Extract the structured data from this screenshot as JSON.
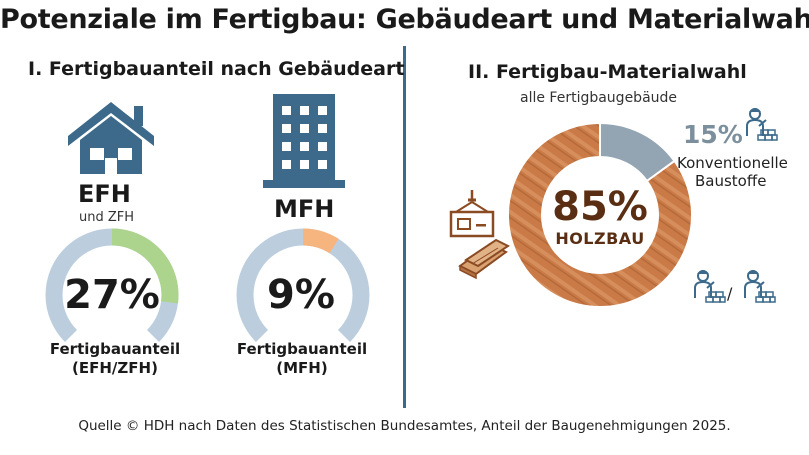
{
  "title": "Potenziale im Fertigbau: Gebäudeart und Materialwahl",
  "left_section": {
    "title": "I. Fertigbauanteil nach Gebäudeart"
  },
  "right_section": {
    "title": "II. Fertigbau-Materialwahl",
    "subtitle": "alle Fertigbaugebäude"
  },
  "source": "Quelle © HDH nach Daten des Statistischen Bundesamtes, Anteil der Baugenehmigungen 2025.",
  "colors": {
    "house_icon": "#3d6a8a",
    "gauge_track": "#bccede",
    "efh_fill": "#acd48c",
    "mfh_fill": "#f6b57f",
    "holz": "#c97a46",
    "konventionell": "#93a4b2"
  },
  "icons": [
    "house-icon",
    "apartment-building-icon",
    "crane-load-icon",
    "timber-beams-icon",
    "bricklayer-icon"
  ],
  "chart_data": [
    {
      "type": "pie",
      "subtype": "gauge",
      "name": "EFH",
      "label": "EFH",
      "sublabel": "und ZFH",
      "value": 27,
      "display": "27%",
      "caption_line1": "Fertigbauanteil",
      "caption_line2": "(EFH/ZFH)"
    },
    {
      "type": "pie",
      "subtype": "gauge",
      "name": "MFH",
      "label": "MFH",
      "value": 9,
      "display": "9%",
      "caption_line1": "Fertigbauanteil",
      "caption_line2": "(MFH)"
    },
    {
      "type": "pie",
      "subtype": "donut",
      "slices": [
        {
          "label": "HOLZBAU",
          "value": 85,
          "display": "85%"
        },
        {
          "label_line1": "Konventionelle",
          "label_line2": "Baustoffe",
          "value": 15,
          "display": "15%"
        }
      ]
    }
  ]
}
